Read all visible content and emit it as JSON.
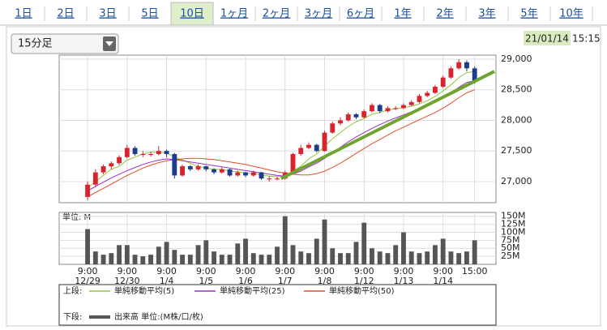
{
  "tabs": {
    "items": [
      "1日",
      "2日",
      "3日",
      "5日",
      "10日",
      "1ヶ月",
      "2ヶ月",
      "3ヶ月",
      "6ヶ月",
      "1年",
      "2年",
      "3年",
      "5年",
      "10年"
    ],
    "selected": 4
  },
  "dropdown": "15分足",
  "timestamp": {
    "date": "21/01/14",
    "time": "15:15"
  },
  "chart_data": {
    "type": "candlestick",
    "xlim": [
      -3.6,
      51.7
    ],
    "ylim": [
      26655,
      29066
    ],
    "yticks": [
      {
        "value": 29000,
        "label": "29,000"
      },
      {
        "value": 28500,
        "label": "28,500"
      },
      {
        "value": 28000,
        "label": "28,000"
      },
      {
        "value": 27500,
        "label": "27,500"
      },
      {
        "value": 27000,
        "label": "27,000"
      }
    ],
    "xticks": [
      {
        "value": 0,
        "label": "9:00",
        "date": "12/29"
      },
      {
        "value": 5,
        "label": "9:00",
        "date": "12/30"
      },
      {
        "value": 10,
        "label": "9:00",
        "date": "1/4"
      },
      {
        "value": 15,
        "label": "9:00",
        "date": "1/5"
      },
      {
        "value": 20,
        "label": "9:00",
        "date": "1/6"
      },
      {
        "value": 25,
        "label": "9:00",
        "date": "1/7"
      },
      {
        "value": 30,
        "label": "9:00",
        "date": "1/8"
      },
      {
        "value": 35,
        "label": "9:00",
        "date": "1/12"
      },
      {
        "value": 40,
        "label": "9:00",
        "date": "1/13"
      },
      {
        "value": 45,
        "label": "9:00",
        "date": "1/14"
      },
      {
        "value": 49,
        "label": "15:00"
      }
    ],
    "grid": true,
    "up_color": "#d9232d",
    "down_color": "#1d3c8c",
    "candles": [
      [
        26750,
        27000,
        26700,
        26950
      ],
      [
        26950,
        27200,
        26920,
        27150
      ],
      [
        27150,
        27280,
        27120,
        27250
      ],
      [
        27250,
        27330,
        27200,
        27300
      ],
      [
        27300,
        27430,
        27270,
        27400
      ],
      [
        27400,
        27600,
        27380,
        27550
      ],
      [
        27550,
        27580,
        27420,
        27450
      ],
      [
        27450,
        27500,
        27400,
        27450
      ],
      [
        27450,
        27490,
        27410,
        27450
      ],
      [
        27450,
        27580,
        27430,
        27500
      ],
      [
        27500,
        27520,
        27400,
        27450
      ],
      [
        27450,
        27470,
        27050,
        27100
      ],
      [
        27100,
        27280,
        27080,
        27250
      ],
      [
        27250,
        27270,
        27170,
        27200
      ],
      [
        27200,
        27280,
        27180,
        27250
      ],
      [
        27250,
        27260,
        27170,
        27200
      ],
      [
        27200,
        27220,
        27120,
        27150
      ],
      [
        27150,
        27230,
        27130,
        27200
      ],
      [
        27200,
        27210,
        27080,
        27100
      ],
      [
        27100,
        27180,
        27080,
        27150
      ],
      [
        27150,
        27160,
        27070,
        27100
      ],
      [
        27100,
        27180,
        27080,
        27150
      ],
      [
        27150,
        27160,
        27030,
        27050
      ],
      [
        27050,
        27090,
        27000,
        27050
      ],
      [
        27050,
        27080,
        27020,
        27050
      ],
      [
        27050,
        27180,
        27030,
        27150
      ],
      [
        27150,
        27470,
        27140,
        27450
      ],
      [
        27450,
        27600,
        27420,
        27550
      ],
      [
        27550,
        27640,
        27530,
        27600
      ],
      [
        27600,
        27620,
        27480,
        27500
      ],
      [
        27500,
        27830,
        27490,
        27800
      ],
      [
        27800,
        27980,
        27780,
        27950
      ],
      [
        27950,
        28050,
        27920,
        28000
      ],
      [
        28000,
        28130,
        27980,
        28100
      ],
      [
        28100,
        28120,
        28020,
        28050
      ],
      [
        28050,
        28180,
        28030,
        28150
      ],
      [
        28150,
        28280,
        28130,
        28250
      ],
      [
        28250,
        28270,
        28120,
        28150
      ],
      [
        28150,
        28230,
        28130,
        28200
      ],
      [
        28200,
        28230,
        28170,
        28200
      ],
      [
        28200,
        28280,
        28180,
        28250
      ],
      [
        28250,
        28330,
        28230,
        28300
      ],
      [
        28300,
        28430,
        28280,
        28400
      ],
      [
        28400,
        28480,
        28380,
        28450
      ],
      [
        28450,
        28580,
        28430,
        28550
      ],
      [
        28550,
        28730,
        28530,
        28700
      ],
      [
        28700,
        28880,
        28680,
        28850
      ],
      [
        28850,
        29000,
        28830,
        28950
      ],
      [
        28950,
        28980,
        28800,
        28850
      ],
      [
        28850,
        28880,
        28600,
        28650
      ]
    ],
    "series": [
      {
        "name": "単純移動平均(5)",
        "color": "#8dc63f",
        "values": [
          26900,
          27000,
          27100,
          27200,
          27250,
          27350,
          27400,
          27450,
          27480,
          27480,
          27470,
          27400,
          27350,
          27300,
          27250,
          27220,
          27200,
          27200,
          27170,
          27160,
          27140,
          27130,
          27110,
          27090,
          27080,
          27090,
          27170,
          27250,
          27370,
          27450,
          27580,
          27700,
          27800,
          27900,
          27980,
          28030,
          28100,
          28130,
          28170,
          28190,
          28210,
          28230,
          28270,
          28320,
          28390,
          28480,
          28580,
          28700,
          28780,
          28800
        ]
      },
      {
        "name": "単純移動平均(25)",
        "color": "#9b30c8",
        "values": [
          26850,
          26920,
          26990,
          27060,
          27120,
          27180,
          27230,
          27280,
          27320,
          27350,
          27370,
          27360,
          27340,
          27320,
          27300,
          27280,
          27260,
          27240,
          27220,
          27200,
          27180,
          27160,
          27140,
          27120,
          27100,
          27090,
          27120,
          27170,
          27240,
          27300,
          27380,
          27470,
          27560,
          27650,
          27730,
          27800,
          27870,
          27930,
          27990,
          28040,
          28090,
          28140,
          28190,
          28240,
          28300,
          28370,
          28450,
          28540,
          28620,
          28650
        ]
      },
      {
        "name": "単純移動平均(50)",
        "color": "#e0502a",
        "values": [
          26750,
          26820,
          26890,
          26960,
          27030,
          27100,
          27160,
          27220,
          27270,
          27310,
          27340,
          27360,
          27370,
          27380,
          27380,
          27370,
          27360,
          27340,
          27320,
          27300,
          27280,
          27250,
          27220,
          27190,
          27160,
          27140,
          27120,
          27110,
          27110,
          27130,
          27170,
          27230,
          27300,
          27380,
          27460,
          27540,
          27620,
          27690,
          27760,
          27830,
          27890,
          27950,
          28010,
          28070,
          28130,
          28200,
          28280,
          28370,
          28450,
          28500
        ]
      }
    ],
    "trendline": {
      "color": "#6fa52f",
      "x": [
        24.5,
        51.5
      ],
      "values": [
        27050,
        28800
      ]
    },
    "upper_label": "上段:",
    "lower_label": "下段:",
    "volume": {
      "name": "出来高 単位:(M株/口/枚)",
      "unit_label": "単位: M",
      "color": "#555",
      "ylim": [
        0,
        162
      ],
      "yticks": [
        {
          "value": 150,
          "label": "150M"
        },
        {
          "value": 125,
          "label": "125M"
        },
        {
          "value": 100,
          "label": "100M"
        },
        {
          "value": 75,
          "label": "75M"
        },
        {
          "value": 50,
          "label": "50M"
        },
        {
          "value": 25,
          "label": "25M"
        }
      ],
      "values": [
        110,
        40,
        30,
        35,
        60,
        60,
        30,
        25,
        30,
        55,
        70,
        45,
        30,
        30,
        60,
        75,
        40,
        30,
        30,
        65,
        80,
        35,
        30,
        30,
        55,
        150,
        60,
        40,
        35,
        80,
        140,
        50,
        35,
        35,
        70,
        130,
        50,
        40,
        35,
        60,
        100,
        40,
        35,
        40,
        60,
        80,
        40,
        35,
        40,
        75
      ]
    }
  }
}
